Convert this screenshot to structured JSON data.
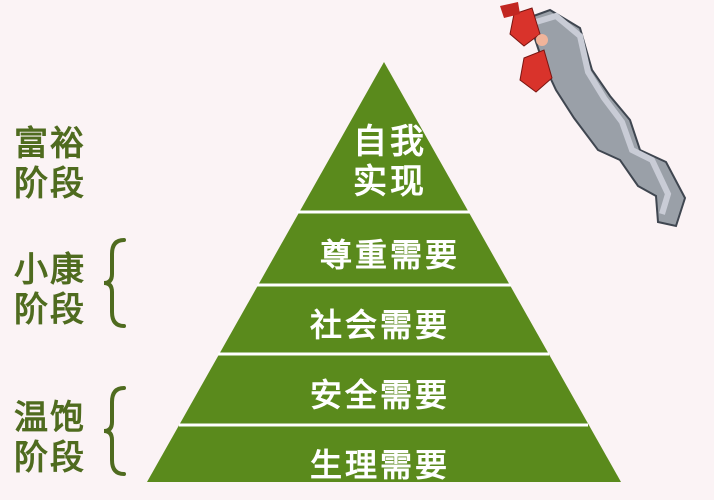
{
  "stages": {
    "wealthy": {
      "line1": "富裕",
      "line2": "阶段"
    },
    "moderate": {
      "line1": "小康",
      "line2": "阶段"
    },
    "subsistence": {
      "line1": "温饱",
      "line2": "阶段"
    }
  },
  "pyramid": {
    "top": {
      "line1": "自我",
      "line2": "实现"
    },
    "tier2": "尊重需要",
    "tier3": "社会需要",
    "tier4": "安全需要",
    "tier5": "生理需要"
  },
  "colors": {
    "pyramid_fill": "#5a8a1c",
    "divider": "#ffffff",
    "label_text": "#4f6b1f",
    "background": "#fbf3f5"
  }
}
